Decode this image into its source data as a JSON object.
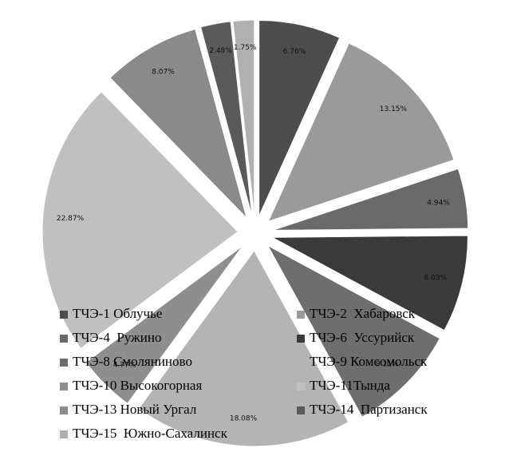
{
  "chart_data": {
    "type": "pie",
    "categories": [
      "ТЧЭ-1 Облучье",
      "ТЧЭ-2  Хабаровск",
      "ТЧЭ-4  Ружино",
      "ТЧЭ-6  Уссурийск",
      "ТЧЭ-8 Смоляниново",
      "ТЧЭ-9 Комсомольск",
      "ТЧЭ-10 Высокогорная",
      "ТЧЭ-11Тында",
      "ТЧЭ-13 Новый Ургал",
      "ТЧЭ-14  Партизанск",
      "ТЧЭ-15  Южно-Сахалинск"
    ],
    "values": [
      6.76,
      13.15,
      4.94,
      8.03,
      9.11,
      18.08,
      4.77,
      22.87,
      8.07,
      2.48,
      1.75
    ],
    "value_labels": [
      "6.76%",
      "13.15%",
      "4.94%",
      "8.03%",
      "9.11%",
      "18.08%",
      "4.77%",
      "22.87%",
      "8.07%",
      "2.48%",
      "1.75%"
    ],
    "colors": [
      "#4d4d4d",
      "#9a9a9a",
      "#6a6a6a",
      "#3a3a3a",
      "#6e6e6e",
      "#b4b4b4",
      "#8e8e8e",
      "#c0c0c0",
      "#8a8a8a",
      "#5a5a5a",
      "#b0b0b0"
    ]
  }
}
